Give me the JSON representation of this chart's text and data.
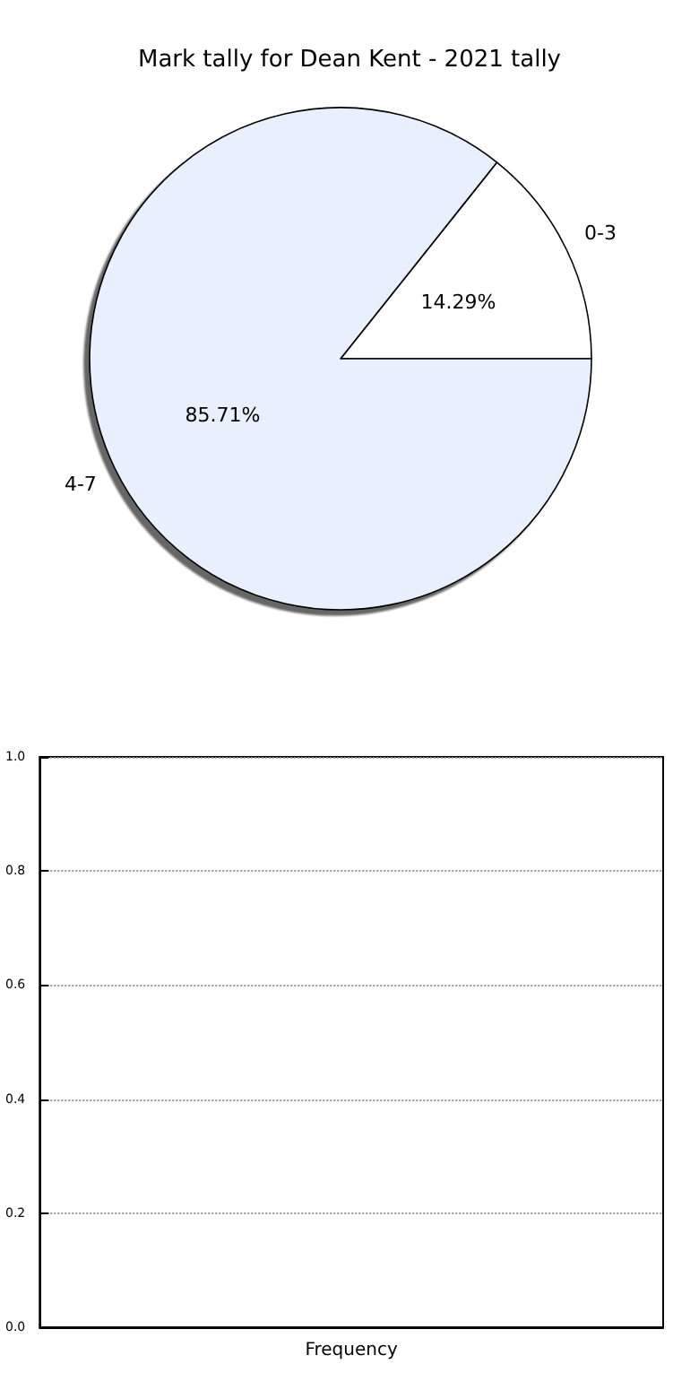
{
  "chart_data": [
    {
      "type": "pie",
      "title": "Mark tally for Dean Kent - 2021 tally",
      "categories": [
        "0-3",
        "4-7"
      ],
      "values": [
        14.29,
        85.71
      ],
      "colors": [
        "#ffffff",
        "#e8effd"
      ],
      "value_labels": [
        "14.29%",
        "85.71%"
      ],
      "legend": false
    },
    {
      "type": "bar",
      "categories": [
        "Frequency"
      ],
      "values": [
        null
      ],
      "ylim": [
        0,
        1
      ],
      "yticks": [
        {
          "value": 0,
          "label": "0.0"
        },
        {
          "value": 0.2,
          "label": "0.2"
        },
        {
          "value": 0.4,
          "label": "0.4"
        },
        {
          "value": 0.6,
          "label": "0.6"
        },
        {
          "value": 0.8,
          "label": "0.8"
        },
        {
          "value": 1,
          "label": "1.0"
        }
      ],
      "grid": "y",
      "legend": false
    }
  ]
}
